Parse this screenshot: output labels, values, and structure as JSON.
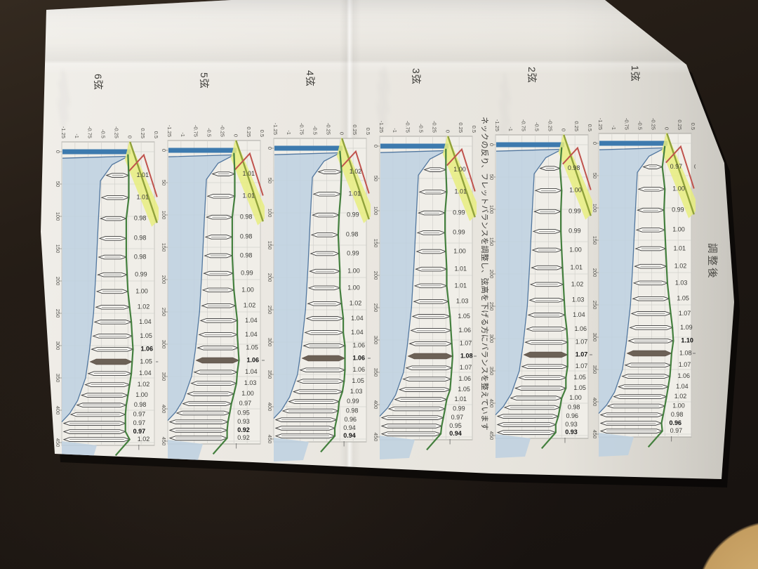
{
  "page": {
    "title": "調整後",
    "annotation": "ネックの反り、フレットバランスを調整し、弦高を下げる方にバランスを整えています"
  },
  "axes": {
    "position_ticks": [
      "0",
      "50",
      "100",
      "150",
      "200",
      "250",
      "300",
      "350",
      "400",
      "450"
    ],
    "height_ticks": [
      "-1.25",
      "-1",
      "-0.75",
      "-0.5",
      "-0.25",
      "0",
      "0.25",
      "0.5"
    ],
    "trailing_mark": "|"
  },
  "colors": {
    "nut_blue": "#3d7aae",
    "neck_fill": "#bdd0e0",
    "neck_line": "#52779f",
    "fret_top_green": "#44803e",
    "highlight_yellow": "#e7ed7f",
    "action_red": "#c0534d",
    "action_olive": "#90a23c",
    "fret12_marker": "#6c6156",
    "fret_outline": "#3a3a3a",
    "grid": "#d3d2cd"
  },
  "chart_data": {
    "type": "line",
    "title": "調整後",
    "x_axis_range": [
      0,
      450
    ],
    "x_axis_tick_step": 50,
    "y_axis_range": [
      -1.25,
      0.5
    ],
    "y_axis_tick_step": 0.25,
    "grid": true,
    "frets_per_string": 20,
    "series": [
      {
        "name": "1弦",
        "values": [
          0.97,
          1.0,
          0.99,
          1.0,
          1.01,
          1.02,
          1.03,
          1.05,
          1.07,
          1.09,
          1.1,
          1.08,
          1.07,
          1.06,
          1.04,
          1.02,
          1.0,
          0.98,
          0.96,
          0.97
        ],
        "bold_indices": [
          10,
          18
        ],
        "leader_index": 11,
        "extra_label": "0"
      },
      {
        "name": "2弦",
        "values": [
          0.98,
          1.0,
          0.99,
          0.99,
          1.0,
          1.01,
          1.02,
          1.03,
          1.04,
          1.06,
          1.07,
          1.07,
          1.07,
          1.05,
          1.05,
          1.0,
          0.98,
          0.96,
          0.93,
          0.93
        ],
        "bold_indices": [
          11,
          19
        ],
        "leader_index": 11
      },
      {
        "name": "3弦",
        "values": [
          1.0,
          1.01,
          0.99,
          0.99,
          1.0,
          1.01,
          1.01,
          1.03,
          1.05,
          1.06,
          1.07,
          1.08,
          1.07,
          1.06,
          1.05,
          1.01,
          0.99,
          0.97,
          0.95,
          0.94
        ],
        "bold_indices": [
          11,
          19
        ],
        "leader_index": 11
      },
      {
        "name": "4弦",
        "values": [
          1.02,
          1.01,
          0.99,
          0.98,
          0.99,
          1.0,
          1.0,
          1.02,
          1.04,
          1.04,
          1.06,
          1.06,
          1.06,
          1.05,
          1.03,
          0.99,
          0.98,
          0.96,
          0.94,
          0.94
        ],
        "bold_indices": [
          11,
          19
        ],
        "leader_index": 11
      },
      {
        "name": "5弦",
        "values": [
          1.01,
          1.01,
          0.98,
          0.98,
          0.98,
          0.99,
          1.0,
          1.02,
          1.04,
          1.04,
          1.05,
          1.06,
          1.04,
          1.03,
          1.0,
          0.97,
          0.95,
          0.93,
          0.92,
          0.92
        ],
        "bold_indices": [
          11,
          18
        ],
        "leader_index": 11
      },
      {
        "name": "6弦",
        "values": [
          1.01,
          1.01,
          0.98,
          0.98,
          0.98,
          0.99,
          1.0,
          1.02,
          1.04,
          1.05,
          1.06,
          1.05,
          1.04,
          1.02,
          1.0,
          0.98,
          0.97,
          0.97,
          0.97,
          1.02
        ],
        "bold_indices": [
          10,
          18
        ],
        "leader_index": 11
      }
    ]
  }
}
